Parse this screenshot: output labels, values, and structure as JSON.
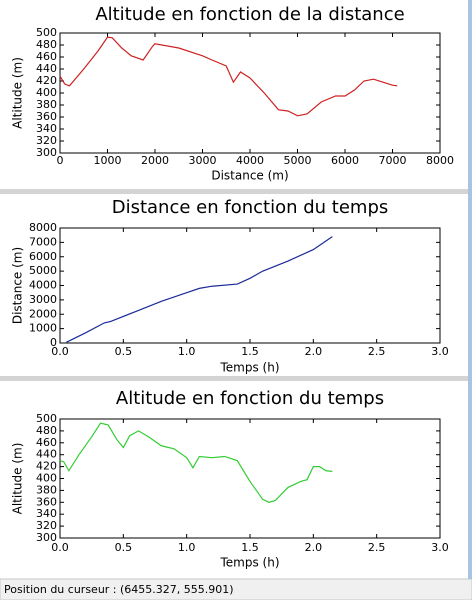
{
  "chart_data": [
    {
      "type": "line",
      "title": "Altitude en fonction de la distance",
      "x_label": "Distance (m)",
      "y_label": "Altitude (m)",
      "x": [
        0,
        100,
        200,
        500,
        800,
        1000,
        1100,
        1300,
        1500,
        1750,
        1950,
        2000,
        2500,
        3000,
        3200,
        3500,
        3650,
        3800,
        4000,
        4300,
        4600,
        4800,
        5000,
        5200,
        5500,
        5800,
        6000,
        6200,
        6400,
        6600,
        6800,
        7000,
        7100
      ],
      "series": [
        {
          "color": "#cc2222",
          "values": [
            428,
            415,
            412,
            440,
            470,
            493,
            492,
            475,
            462,
            455,
            478,
            482,
            475,
            462,
            455,
            445,
            418,
            435,
            425,
            400,
            372,
            370,
            362,
            365,
            385,
            395,
            395,
            405,
            420,
            423,
            418,
            413,
            412
          ]
        }
      ],
      "xlim": [
        0,
        8000
      ],
      "xticks": [
        0,
        1000,
        2000,
        3000,
        4000,
        5000,
        6000,
        7000,
        8000
      ],
      "ylim": [
        300,
        500
      ],
      "yticks": [
        300,
        320,
        340,
        360,
        380,
        400,
        420,
        440,
        460,
        480,
        500
      ],
      "grid": false
    },
    {
      "type": "line",
      "title": "Distance en fonction du temps",
      "x_label": "Temps (h)",
      "y_label": "Distance (m)",
      "x": [
        0.05,
        0.2,
        0.35,
        0.4,
        0.6,
        0.8,
        1.0,
        1.1,
        1.2,
        1.4,
        1.5,
        1.6,
        1.8,
        2.0,
        2.15
      ],
      "series": [
        {
          "color": "#1a2a9a",
          "values": [
            50,
            700,
            1400,
            1500,
            2200,
            2900,
            3500,
            3800,
            3950,
            4100,
            4500,
            5000,
            5700,
            6500,
            7400
          ]
        }
      ],
      "xlim": [
        0,
        3
      ],
      "xticks": [
        {
          "value": 0,
          "label": "0.0"
        },
        0.5,
        {
          "value": 1,
          "label": "1.0"
        },
        1.5,
        {
          "value": 2,
          "label": "2.0"
        },
        2.5,
        {
          "value": 3,
          "label": "3.0"
        }
      ],
      "ylim": [
        0,
        8000
      ],
      "yticks": [
        0,
        1000,
        2000,
        3000,
        4000,
        5000,
        6000,
        7000,
        8000
      ],
      "grid": false
    },
    {
      "type": "line",
      "title": "Altitude en fonction du temps",
      "x_label": "Temps (h)",
      "y_label": "Altitude (m)",
      "x": [
        0,
        0.03,
        0.07,
        0.15,
        0.25,
        0.32,
        0.38,
        0.45,
        0.5,
        0.55,
        0.62,
        0.7,
        0.8,
        0.9,
        1.0,
        1.05,
        1.1,
        1.2,
        1.3,
        1.4,
        1.5,
        1.6,
        1.65,
        1.7,
        1.8,
        1.9,
        1.95,
        2.0,
        2.05,
        2.1,
        2.15
      ],
      "series": [
        {
          "color": "#33cc33",
          "values": [
            430,
            428,
            413,
            440,
            470,
            493,
            490,
            465,
            452,
            472,
            480,
            470,
            455,
            450,
            435,
            418,
            437,
            435,
            437,
            430,
            395,
            365,
            360,
            363,
            385,
            395,
            398,
            420,
            420,
            413,
            412
          ]
        }
      ],
      "xlim": [
        0,
        3
      ],
      "xticks": [
        {
          "value": 0,
          "label": "0.0"
        },
        0.5,
        {
          "value": 1,
          "label": "1.0"
        },
        1.5,
        {
          "value": 2,
          "label": "2.0"
        },
        2.5,
        {
          "value": 3,
          "label": "3.0"
        }
      ],
      "ylim": [
        300,
        500
      ],
      "yticks": [
        300,
        320,
        340,
        360,
        380,
        400,
        420,
        440,
        460,
        480,
        500
      ],
      "grid": false
    }
  ],
  "status_bar": "Position du curseur : (6455.327, 555.901)"
}
